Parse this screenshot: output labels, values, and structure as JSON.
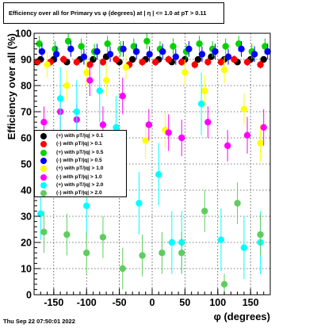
{
  "title": "Efficiency over all for Primary vs φ (degrees) at |  η | <= 1.0 at pT > 0.11",
  "footer": "Thu Sep 22 07:50:01 2022",
  "chart_data": {
    "type": "scatter",
    "xlabel": "φ (degrees)",
    "ylabel": "Efficiency over all (%)",
    "xlim": [
      -180,
      180
    ],
    "ylim": [
      0,
      100
    ],
    "xticks": [
      -150,
      -100,
      -50,
      0,
      50,
      100,
      150
    ],
    "yticks": [
      0,
      10,
      20,
      30,
      40,
      50,
      60,
      70,
      80,
      90,
      100
    ],
    "grid": true,
    "legend_position": "center-left",
    "series": [
      {
        "name": "(+) with pT/|q| > 0.1",
        "color": "#000000",
        "x": [
          -170,
          -150,
          -130,
          -110,
          -90,
          -70,
          -50,
          -30,
          -10,
          10,
          30,
          50,
          70,
          90,
          110,
          130,
          150,
          170
        ],
        "y": [
          90,
          90,
          89,
          90,
          90,
          91,
          89,
          90,
          90,
          90,
          89,
          90,
          90,
          91,
          90,
          89,
          90,
          90
        ],
        "err": [
          1,
          1,
          1,
          1,
          1,
          1,
          1,
          1,
          1,
          1,
          1,
          1,
          1,
          1,
          1,
          1,
          1,
          1
        ]
      },
      {
        "name": "(-) with pT/|q| > 0.1",
        "color": "#ff0000",
        "x": [
          -175,
          -155,
          -135,
          -115,
          -95,
          -75,
          -55,
          -35,
          -15,
          5,
          25,
          45,
          65,
          85,
          105,
          125,
          145,
          165
        ],
        "y": [
          89,
          89,
          90,
          89,
          88,
          89,
          90,
          88,
          89,
          89,
          90,
          89,
          88,
          89,
          89,
          90,
          89,
          88
        ],
        "err": [
          1.5,
          1.5,
          1.5,
          1.5,
          1.5,
          1.5,
          1.5,
          1.5,
          1.5,
          1.5,
          1.5,
          1.5,
          1.5,
          1.5,
          1.5,
          1.5,
          1.5,
          1.5
        ]
      },
      {
        "name": "(+) with pT/|q| > 0.5",
        "color": "#00d400",
        "x": [
          -172,
          -148,
          -128,
          -108,
          -88,
          -68,
          -48,
          -28,
          -8,
          12,
          32,
          52,
          72,
          92,
          112,
          132,
          152,
          172
        ],
        "y": [
          96,
          94,
          97,
          95,
          93,
          96,
          94,
          95,
          97,
          94,
          95,
          93,
          96,
          94,
          95,
          96,
          93,
          95
        ],
        "err": [
          3,
          3,
          3,
          3,
          3,
          3,
          3,
          3,
          3,
          3,
          3,
          3,
          3,
          3,
          3,
          3,
          3,
          3
        ]
      },
      {
        "name": "(-) with pT/|q| > 0.5",
        "color": "#0000ff",
        "x": [
          -168,
          -146,
          -124,
          -104,
          -84,
          -64,
          -44,
          -24,
          -4,
          16,
          36,
          56,
          76,
          96,
          116,
          136,
          156,
          176
        ],
        "y": [
          93,
          92,
          94,
          91,
          93,
          92,
          94,
          93,
          92,
          93,
          91,
          94,
          92,
          93,
          91,
          94,
          92,
          93
        ],
        "err": [
          3,
          3,
          3,
          3,
          3,
          3,
          3,
          3,
          3,
          3,
          3,
          3,
          3,
          3,
          3,
          3,
          3,
          3
        ]
      },
      {
        "name": "(+) with pT/|q| > 1.0",
        "color": "#ffff00",
        "x": [
          -160,
          -130,
          -100,
          -70,
          -40,
          -10,
          20,
          50,
          80,
          110,
          140,
          165
        ],
        "y": [
          88,
          80,
          85,
          82,
          87,
          59,
          63,
          85,
          78,
          86,
          71,
          58
        ],
        "err": [
          5,
          6,
          5,
          6,
          5,
          7,
          7,
          5,
          6,
          5,
          6,
          7
        ]
      },
      {
        "name": "(-) with pT/|q| > 1.0",
        "color": "#ff00ff",
        "x": [
          -165,
          -140,
          -115,
          -95,
          -75,
          -45,
          -5,
          25,
          45,
          85,
          115,
          145,
          170
        ],
        "y": [
          66,
          70,
          67,
          82,
          65,
          76,
          65,
          62,
          60,
          66,
          57,
          61,
          64
        ],
        "err": [
          6,
          7,
          6,
          6,
          7,
          7,
          6,
          7,
          7,
          6,
          6,
          7,
          7
        ]
      },
      {
        "name": "(+) with pT/|q| > 2.0",
        "color": "#00ffff",
        "x": [
          -170,
          -140,
          -115,
          -100,
          -80,
          -55,
          -20,
          10,
          30,
          45,
          75,
          105,
          140,
          165
        ],
        "y": [
          31,
          75,
          70,
          34,
          78,
          64,
          35,
          46,
          20,
          20,
          73,
          21,
          18,
          20
        ],
        "err": [
          10,
          12,
          12,
          12,
          12,
          12,
          12,
          12,
          12,
          12,
          12,
          12,
          12,
          12
        ]
      },
      {
        "name": "(-) with pT/|q| > 2.0",
        "color": "#5fcc5f",
        "x": [
          -165,
          -130,
          -100,
          -75,
          -45,
          -15,
          15,
          45,
          80,
          110,
          130,
          165
        ],
        "y": [
          24,
          23,
          16,
          22,
          10,
          15,
          16,
          16,
          32,
          4,
          35,
          23
        ],
        "err": [
          8,
          8,
          8,
          8,
          8,
          8,
          8,
          8,
          8,
          4,
          8,
          8
        ]
      }
    ]
  }
}
